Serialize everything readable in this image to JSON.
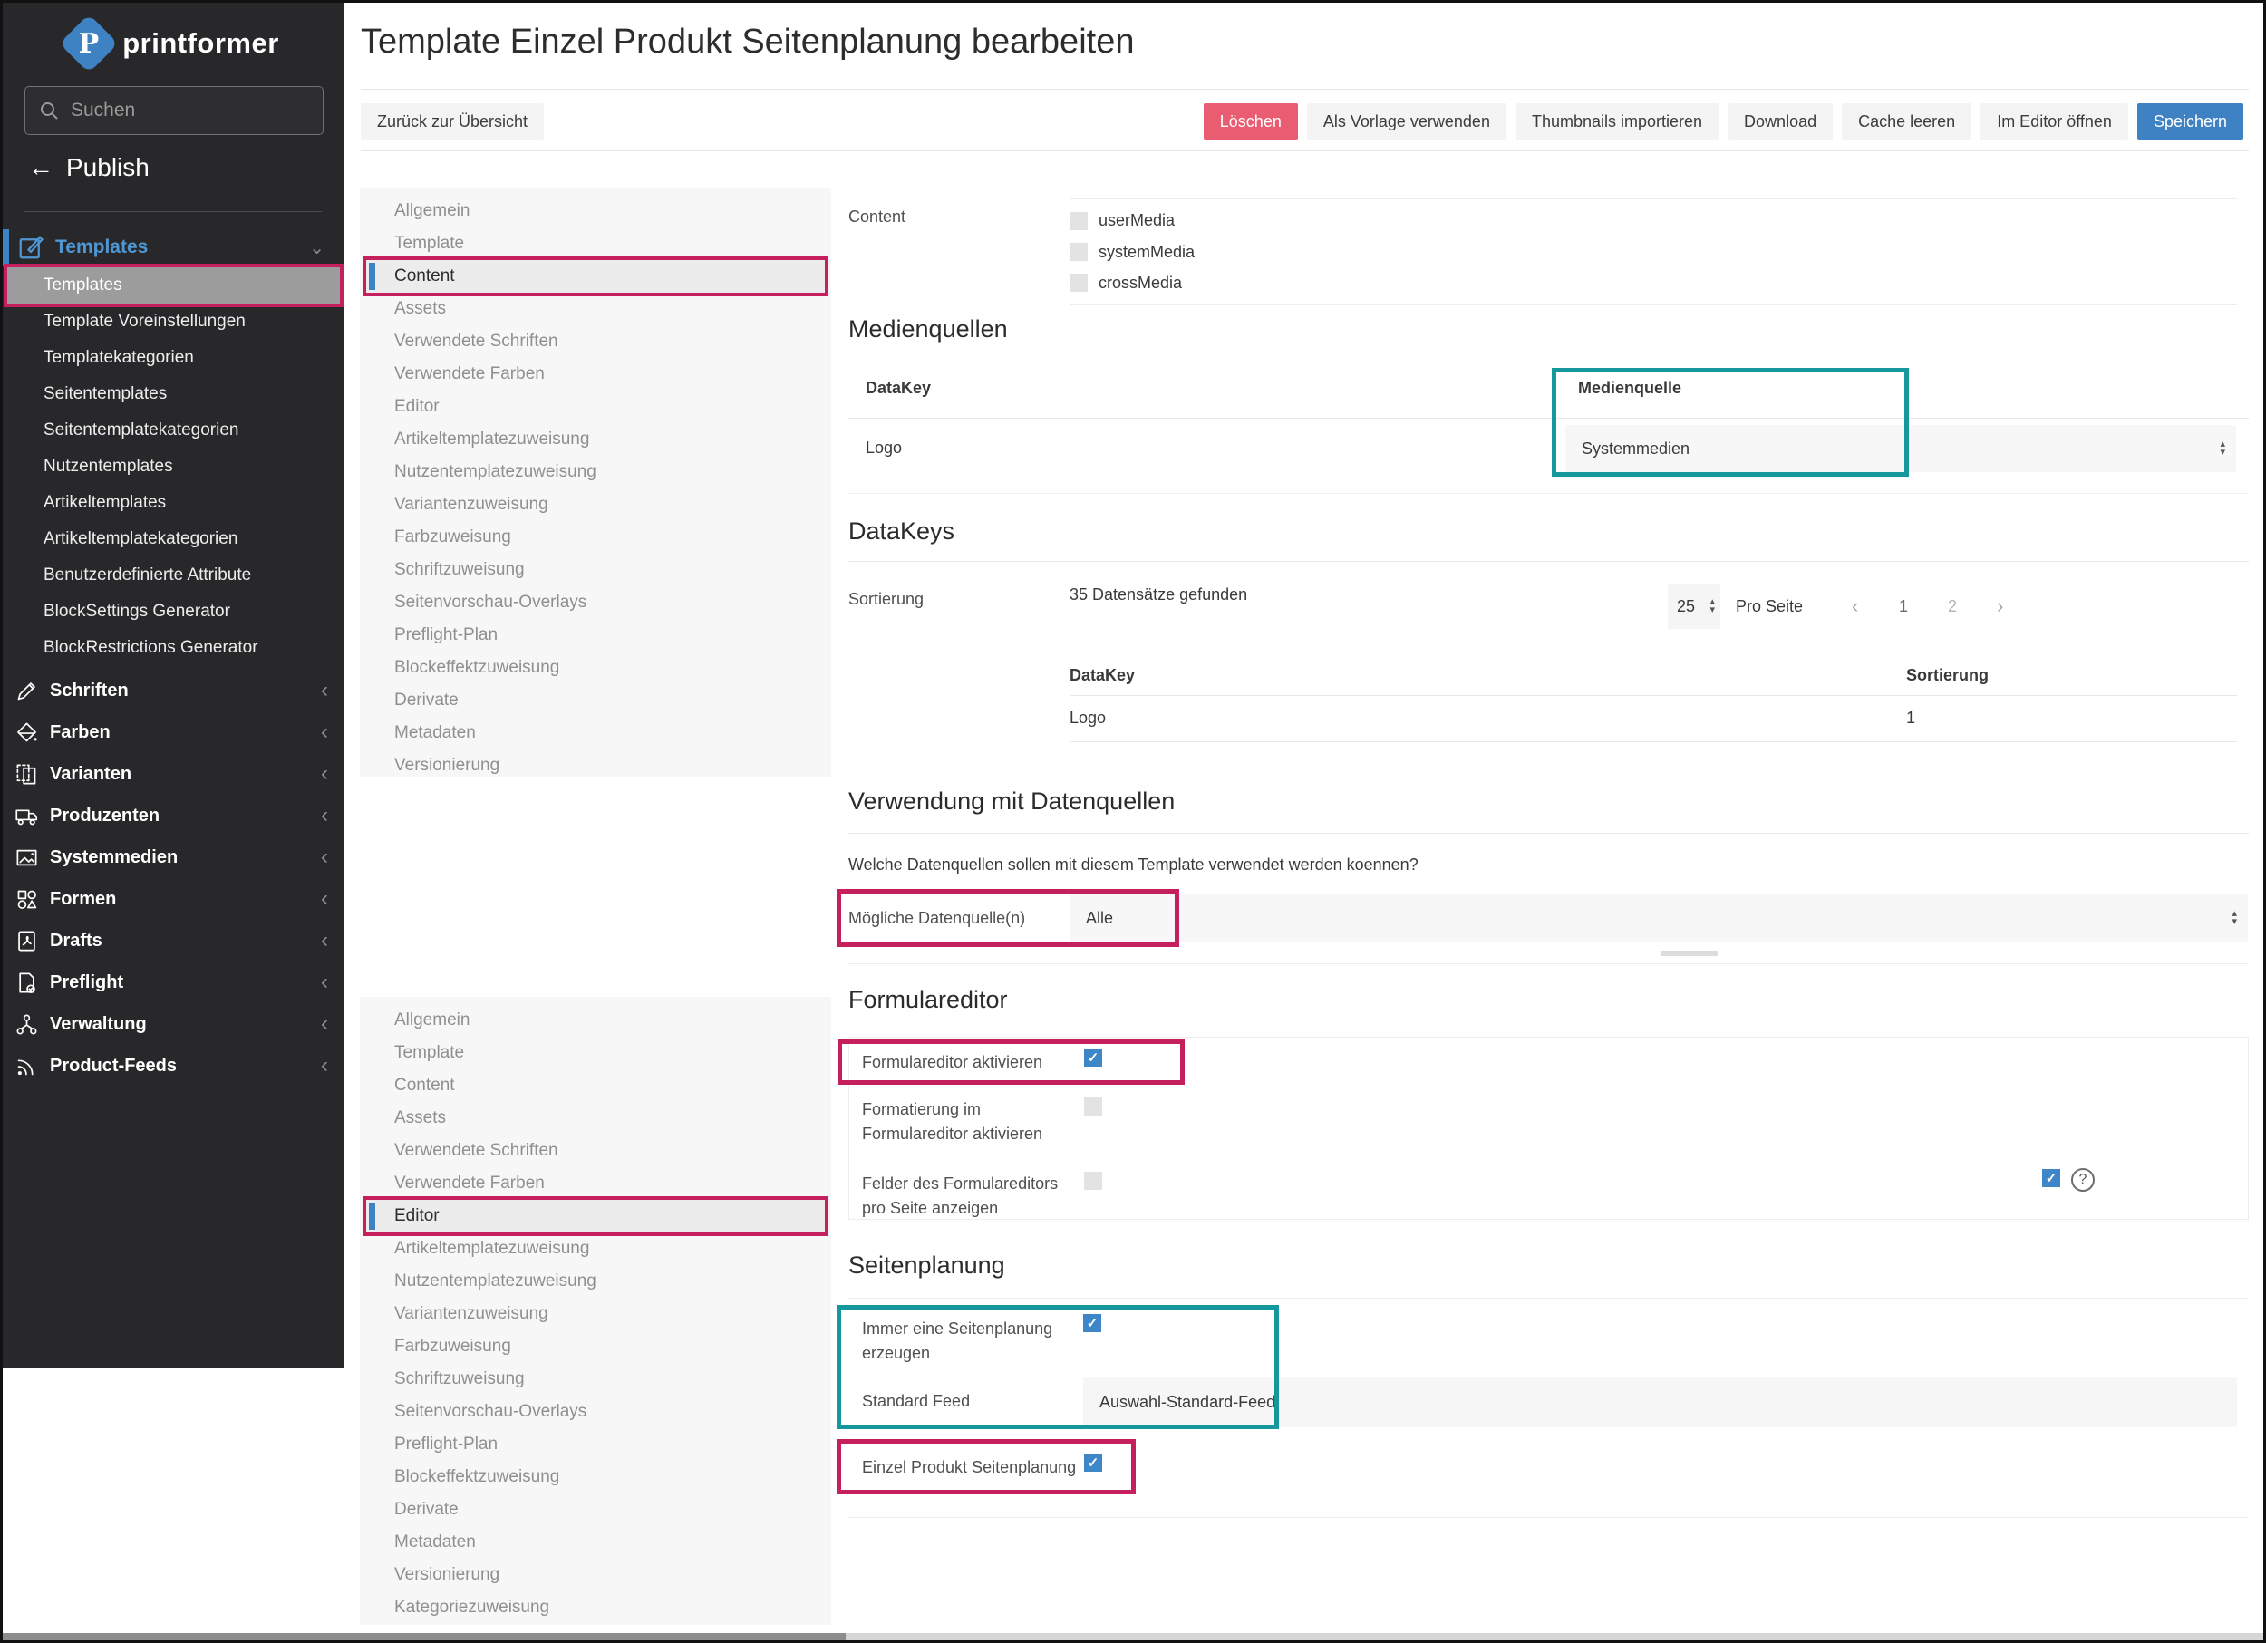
{
  "window": {
    "title": "Template Einzel Produkt Seitenplanung bearbeiten"
  },
  "colors": {
    "accent_blue": "#3e82c4",
    "annotation_pink": "#c51f5d",
    "annotation_teal": "#14989d",
    "danger_red": "#e95c72",
    "sidebar_bg": "#28282a"
  },
  "sidebar": {
    "brand": "printformer",
    "search": {
      "placeholder": "Suchen"
    },
    "back": {
      "label": "Publish"
    },
    "templates_section": {
      "label": "Templates",
      "items": [
        {
          "label": "Templates",
          "active": true
        },
        {
          "label": "Template Voreinstellungen"
        },
        {
          "label": "Templatekategorien"
        },
        {
          "label": "Seitentemplates"
        },
        {
          "label": "Seitentemplatekategorien"
        },
        {
          "label": "Nutzentemplates"
        },
        {
          "label": "Artikeltemplates"
        },
        {
          "label": "Artikeltemplatekategorien"
        },
        {
          "label": "Benutzerdefinierte Attribute"
        },
        {
          "label": "BlockSettings Generator"
        },
        {
          "label": "BlockRestrictions Generator"
        }
      ]
    },
    "groups": [
      {
        "label": "Schriften",
        "icon": "pencil"
      },
      {
        "label": "Farben",
        "icon": "paint"
      },
      {
        "label": "Varianten",
        "icon": "pages"
      },
      {
        "label": "Produzenten",
        "icon": "truck"
      },
      {
        "label": "Systemmedien",
        "icon": "image"
      },
      {
        "label": "Formen",
        "icon": "shapes"
      },
      {
        "label": "Drafts",
        "icon": "pdf"
      },
      {
        "label": "Preflight",
        "icon": "preflight"
      },
      {
        "label": "Verwaltung",
        "icon": "org"
      },
      {
        "label": "Product-Feeds",
        "icon": "rss"
      }
    ]
  },
  "toolbar": {
    "back_label": "Zurück zur Übersicht",
    "actions": [
      {
        "label": "Löschen",
        "variant": "danger"
      },
      {
        "label": "Als Vorlage verwenden"
      },
      {
        "label": "Thumbnails importieren"
      },
      {
        "label": "Download"
      },
      {
        "label": "Cache leeren"
      },
      {
        "label": "Im Editor öffnen"
      },
      {
        "label": "Speichern",
        "variant": "primary"
      }
    ]
  },
  "subnav_top": {
    "items": [
      {
        "label": "Allgemein"
      },
      {
        "label": "Template"
      },
      {
        "label": "Content",
        "active": true
      },
      {
        "label": "Assets"
      },
      {
        "label": "Verwendete Schriften"
      },
      {
        "label": "Verwendete Farben"
      },
      {
        "label": "Editor"
      },
      {
        "label": "Artikeltemplatezuweisung"
      },
      {
        "label": "Nutzentemplatezuweisung"
      },
      {
        "label": "Variantenzuweisung"
      },
      {
        "label": "Farbzuweisung"
      },
      {
        "label": "Schriftzuweisung"
      },
      {
        "label": "Seitenvorschau-Overlays"
      },
      {
        "label": "Preflight-Plan"
      },
      {
        "label": "Blockeffektzuweisung"
      },
      {
        "label": "Derivate"
      },
      {
        "label": "Metadaten"
      },
      {
        "label": "Versionierung"
      }
    ]
  },
  "subnav_bottom": {
    "items": [
      {
        "label": "Allgemein"
      },
      {
        "label": "Template"
      },
      {
        "label": "Content"
      },
      {
        "label": "Assets"
      },
      {
        "label": "Verwendete Schriften"
      },
      {
        "label": "Verwendete Farben"
      },
      {
        "label": "Editor",
        "active": true
      },
      {
        "label": "Artikeltemplatezuweisung"
      },
      {
        "label": "Nutzentemplatezuweisung"
      },
      {
        "label": "Variantenzuweisung"
      },
      {
        "label": "Farbzuweisung"
      },
      {
        "label": "Schriftzuweisung"
      },
      {
        "label": "Seitenvorschau-Overlays"
      },
      {
        "label": "Preflight-Plan"
      },
      {
        "label": "Blockeffektzuweisung"
      },
      {
        "label": "Derivate"
      },
      {
        "label": "Metadaten"
      },
      {
        "label": "Versionierung"
      },
      {
        "label": "Kategoriezuweisung"
      }
    ]
  },
  "content": {
    "content_row": {
      "label": "Content",
      "options": [
        {
          "label": "userMedia",
          "checked": false
        },
        {
          "label": "systemMedia",
          "checked": false
        },
        {
          "label": "crossMedia",
          "checked": false
        }
      ]
    },
    "medienquellen": {
      "heading": "Medienquellen",
      "columns": [
        "DataKey",
        "Medienquelle"
      ],
      "row": {
        "datakey": "Logo",
        "medienquelle": "Systemmedien"
      }
    },
    "datakeys": {
      "heading": "DataKeys",
      "sortierung_label": "Sortierung",
      "result_count": "35 Datensätze gefunden",
      "pagination": {
        "per_page": "25",
        "per_page_label": "Pro Seite",
        "prev": "‹",
        "next": "›",
        "pages": [
          "1",
          "2"
        ],
        "current_page": "1"
      },
      "table": {
        "columns": [
          "DataKey",
          "Sortierung"
        ],
        "row": {
          "datakey": "Logo",
          "sortierung": "1"
        }
      }
    },
    "datenquellen": {
      "heading": "Verwendung mit Datenquellen",
      "question": "Welche Datenquellen sollen mit diesem Template verwendet werden koennen?",
      "label": "Mögliche Datenquelle(n)",
      "value": "Alle"
    },
    "formulareditor": {
      "heading": "Formulareditor",
      "rows": {
        "aktivieren": {
          "label": "Formulareditor aktivieren",
          "checked": true
        },
        "formatierung": {
          "label": "Formatierung im Formulareditor aktivieren",
          "checked": false
        },
        "felder": {
          "label": "Felder des Formulareditors pro Seite anzeigen",
          "checked": false,
          "right_checked": true,
          "help": "?"
        }
      }
    },
    "seitenplanung": {
      "heading": "Seitenplanung",
      "immer": {
        "label": "Immer eine Seitenplanung erzeugen",
        "checked": true
      },
      "standard_feed": {
        "label": "Standard Feed",
        "value": "Auswahl-Standard-Feed"
      },
      "einzel": {
        "label": "Einzel Produkt Seitenplanung",
        "checked": true
      }
    }
  }
}
